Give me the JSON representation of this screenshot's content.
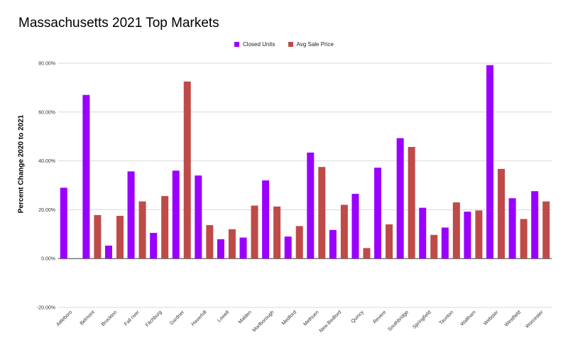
{
  "chart_data": {
    "type": "bar",
    "title": "Massachusetts 2021 Top Markets",
    "xlabel": "",
    "ylabel": "Percent Change 2020 to 2021",
    "ylim": [
      -0.2,
      0.8
    ],
    "yticks": [
      {
        "value": -0.2,
        "label": "-20.00%"
      },
      {
        "value": 0.0,
        "label": "0.00%"
      },
      {
        "value": 0.2,
        "label": "20.00%"
      },
      {
        "value": 0.4,
        "label": "40.00%"
      },
      {
        "value": 0.6,
        "label": "60.00%"
      },
      {
        "value": 0.8,
        "label": "80.00%"
      }
    ],
    "grid": true,
    "legend_position": "top",
    "categories": [
      "Attleboro",
      "Belmont",
      "Brockton",
      "Fall river",
      "Fitchburg",
      "Gardner",
      "Haverhill",
      "Lowell",
      "Malden",
      "Marlborough",
      "Medford",
      "Methuen",
      "New Bedford",
      "Quincy",
      "Revere",
      "Southbridge",
      "Springfield",
      "Taunton",
      "Waltham",
      "Webster",
      "Westfield",
      "Worcester"
    ],
    "series": [
      {
        "name": "Closed Units",
        "color": "#9900ff",
        "values": [
          0.29,
          0.67,
          0.053,
          0.357,
          0.105,
          0.36,
          0.34,
          0.079,
          0.086,
          0.32,
          0.09,
          0.434,
          0.117,
          0.265,
          0.372,
          0.493,
          0.208,
          0.127,
          0.192,
          0.792,
          0.247,
          0.276
        ]
      },
      {
        "name": "Avg Sale Price",
        "color": "#be4b48",
        "values": [
          null,
          0.178,
          0.175,
          0.234,
          0.256,
          0.725,
          0.137,
          0.12,
          0.217,
          0.213,
          0.133,
          0.375,
          0.22,
          0.043,
          0.14,
          0.457,
          0.097,
          0.23,
          0.197,
          0.367,
          0.162,
          0.234
        ]
      }
    ]
  }
}
